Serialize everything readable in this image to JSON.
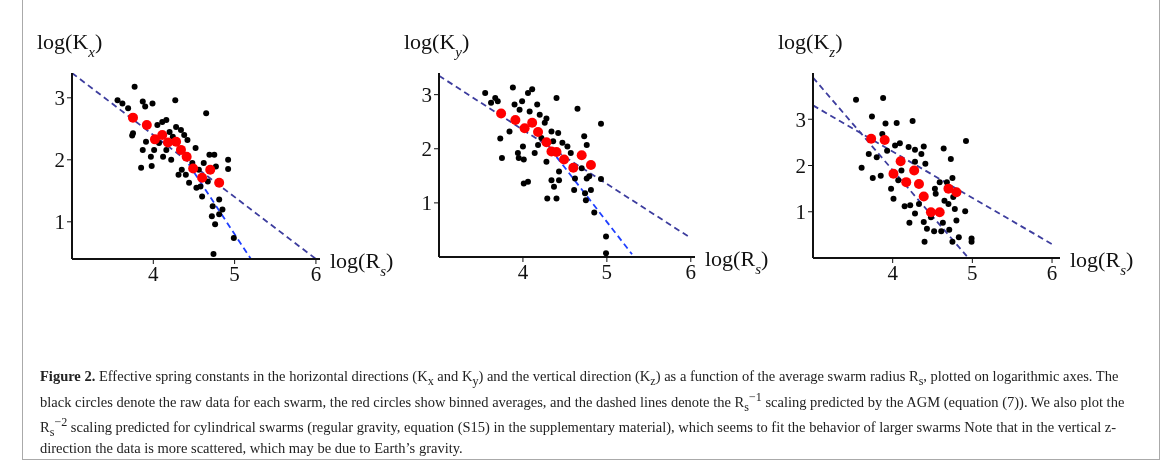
{
  "chart_data": [
    {
      "type": "scatter",
      "ylabel": "log(K$_{x}$)",
      "xlabel": "log(R$_{s}$)",
      "xlim": [
        3,
        6.05
      ],
      "ylim": [
        0.4,
        3.4
      ],
      "xticks": [
        4,
        5,
        6
      ],
      "yticks": [
        1,
        2,
        3
      ],
      "marker": "circle",
      "annotations": [
        "Figure 2.",
        "Effective spring constants in the horizontal directions (K$_{x}$ and K$_{y}$) and the vertical direction (K$_{z}$) as a function of the average swarm radius R$_{s}$, plotted on logarithmic axes. The black circles denote the raw data for each swarm, the red circles show binned averages, and the dashed lines denote the R$_{s}$$^{−1}$ scaling predicted by the AGM (equation (7)). We also plot the R$_{s}$$^{−2}$ scaling predicted for cylindrical swarms (regular gravity, equation (S15) in the supplementary material), which seems to fit the behavior of larger swarms Note that in the vertical z-direction the data is more scattered, which may be due to Earth’s gravity."
      ],
      "series": [
        {
          "type": "line",
          "color": "#3d3d9e",
          "line_style": "dashed",
          "marker": "none",
          "x": [
            3,
            6
          ],
          "values": [
            3.4,
            0.4
          ]
        },
        {
          "type": "line",
          "color": "#1f3fff",
          "line_style": "dashed",
          "marker": "none",
          "x": [
            4.3,
            5.2
          ],
          "values": [
            2.2,
            0.4
          ]
        },
        {
          "color": "#000000",
          "x": [
            3.56,
            3.62,
            3.69,
            3.77,
            3.75,
            3.74,
            3.87,
            3.9,
            3.99,
            3.85,
            3.87,
            3.91,
            3.97,
            3.98,
            4.01,
            4.05,
            4.11,
            4.16,
            4.12,
            4.16,
            4.27,
            4.22,
            4.28,
            4.34,
            4.38,
            4.42,
            4.35,
            4.4,
            4.44,
            4.52,
            4.53,
            4.6,
            4.58,
            4.65,
            4.67,
            4.69,
            4.75,
            4.77,
            4.73,
            4.72,
            4.76,
            4.81,
            4.85,
            4.81,
            4.92,
            4.92,
            4.99,
            4.74,
            4.24,
            4.48,
            4.56,
            4.31,
            4.2,
            4.07,
            4.62
          ],
          "values": [
            2.96,
            2.91,
            2.83,
            3.18,
            2.43,
            2.39,
            2.94,
            2.86,
            2.91,
            1.87,
            2.16,
            2.29,
            2.05,
            1.9,
            2.16,
            2.56,
            2.61,
            2.64,
            2.05,
            2.16,
            2.96,
            2.0,
            2.53,
            2.48,
            2.4,
            2.32,
            1.84,
            1.76,
            1.63,
            2.19,
            1.55,
            1.41,
            1.57,
            2.75,
            1.65,
            2.08,
            2.08,
            1.89,
            1.25,
            1.09,
            0.96,
            1.36,
            1.2,
            1.12,
            2.0,
            1.85,
            0.74,
            0.48,
            2.37,
            1.95,
            1.84,
            1.76,
            2.45,
            2.27,
            1.95
          ]
        },
        {
          "color": "#ff0000",
          "x": [
            3.75,
            3.92,
            4.02,
            4.11,
            4.18,
            4.28,
            4.34,
            4.41,
            4.49,
            4.6,
            4.7,
            4.81
          ],
          "values": [
            2.68,
            2.56,
            2.33,
            2.4,
            2.28,
            2.29,
            2.16,
            2.05,
            1.86,
            1.71,
            1.84,
            1.63
          ]
        }
      ]
    },
    {
      "type": "scatter",
      "ylabel": "log(K$_{y}$)",
      "xlabel": "log(R$_{s}$)",
      "xlim": [
        3,
        6.05
      ],
      "ylim": [
        0,
        3.4
      ],
      "xticks": [
        4,
        5,
        6
      ],
      "yticks": [
        1,
        2,
        3
      ],
      "marker": "circle",
      "series": [
        {
          "type": "line",
          "color": "#3d3d9e",
          "line_style": "dashed",
          "marker": "none",
          "x": [
            3,
            6
          ],
          "values": [
            3.35,
            0.35
          ]
        },
        {
          "type": "line",
          "color": "#1f3fff",
          "line_style": "dashed",
          "marker": "none",
          "x": [
            4.4,
            5.3
          ],
          "values": [
            1.85,
            0.05
          ]
        },
        {
          "color": "#000000",
          "x": [
            3.55,
            3.62,
            3.67,
            3.7,
            3.73,
            3.75,
            3.84,
            3.88,
            3.9,
            3.96,
            3.99,
            3.94,
            3.95,
            4.01,
            4.01,
            4.06,
            4.0,
            4.06,
            4.11,
            4.08,
            4.17,
            4.14,
            4.2,
            4.26,
            4.28,
            4.28,
            4.29,
            4.34,
            4.37,
            4.4,
            4.4,
            4.42,
            4.43,
            4.43,
            4.47,
            4.53,
            4.57,
            4.61,
            4.62,
            4.65,
            4.7,
            4.73,
            4.74,
            4.75,
            4.76,
            4.76,
            4.79,
            4.81,
            4.85,
            4.93,
            4.93,
            4.99,
            4.99,
            4.22,
            4.34,
            4.18,
            4.36
          ],
          "values": [
            3.03,
            2.85,
            2.94,
            2.88,
            2.19,
            1.83,
            2.32,
            3.13,
            2.82,
            2.72,
            2.88,
            1.92,
            1.83,
            1.8,
            1.36,
            1.39,
            2.04,
            3.03,
            3.1,
            2.69,
            2.82,
            1.92,
            2.63,
            2.48,
            2.56,
            1.76,
            1.08,
            1.42,
            1.3,
            2.94,
            1.08,
            2.29,
            1.58,
            1.42,
            2.11,
            2.04,
            1.92,
            1.24,
            1.45,
            2.74,
            1.64,
            2.23,
            1.18,
            1.05,
            2.07,
            1.45,
            1.49,
            1.24,
            0.82,
            2.46,
            1.44,
            0.38,
            0.07,
            2.2,
            2.32,
            2.07,
            2.14
          ]
        },
        {
          "color": "#ff0000",
          "x": [
            3.74,
            3.91,
            4.02,
            4.11,
            4.18,
            4.28,
            4.34,
            4.4,
            4.49,
            4.6,
            4.7,
            4.81
          ],
          "values": [
            2.65,
            2.53,
            2.38,
            2.48,
            2.31,
            2.12,
            1.95,
            1.94,
            1.8,
            1.65,
            1.88,
            1.7
          ]
        }
      ]
    },
    {
      "type": "scatter",
      "ylabel": "log(K$_{z}$)",
      "xlabel": "log(R$_{s}$)",
      "xlim": [
        3,
        6.1
      ],
      "ylim": [
        0,
        4
      ],
      "xticks": [
        4,
        5,
        6
      ],
      "yticks": [
        1,
        2,
        3
      ],
      "marker": "circle",
      "series": [
        {
          "type": "line",
          "color": "#3d3d9e",
          "line_style": "dashed",
          "marker": "none",
          "x": [
            3,
            6
          ],
          "values": [
            3.3,
            0.3
          ]
        },
        {
          "type": "line",
          "color": "#3d3d9e",
          "line_style": "dashed",
          "marker": "none",
          "x": [
            3,
            4.93
          ],
          "values": [
            3.9,
            0.04
          ]
        },
        {
          "color": "#000000",
          "x": [
            3.54,
            3.88,
            3.74,
            3.91,
            4.05,
            4.25,
            3.7,
            3.61,
            3.75,
            3.85,
            3.8,
            3.87,
            3.93,
            3.98,
            4.01,
            4.03,
            4.09,
            4.11,
            4.15,
            4.2,
            4.21,
            4.22,
            4.28,
            4.28,
            4.28,
            4.36,
            4.39,
            4.39,
            4.41,
            4.4,
            4.43,
            4.48,
            4.53,
            4.52,
            4.54,
            4.59,
            4.61,
            4.63,
            4.64,
            4.65,
            4.68,
            4.7,
            4.71,
            4.73,
            4.75,
            4.75,
            4.76,
            4.78,
            4.8,
            4.83,
            4.91,
            4.92,
            4.99,
            4.99,
            4.07,
            4.33
          ],
          "values": [
            3.42,
            3.46,
            3.06,
            2.91,
            2.92,
            2.96,
            2.25,
            1.95,
            1.73,
            1.78,
            2.18,
            2.68,
            2.32,
            1.5,
            1.28,
            2.43,
            2.48,
            1.89,
            1.12,
            2.4,
            0.76,
            1.14,
            2.34,
            2.08,
            0.96,
            2.25,
            2.41,
            0.78,
            2.04,
            0.35,
            0.63,
            0.88,
            1.5,
            0.58,
            1.39,
            1.64,
            0.58,
            0.76,
            2.37,
            1.24,
            1.64,
            1.17,
            0.61,
            2.14,
            0.35,
            1.73,
            1.32,
            1.06,
            0.81,
            0.45,
            1.01,
            2.53,
            0.42,
            0.35,
            1.68,
            1.17
          ]
        },
        {
          "color": "#ff0000",
          "x": [
            3.73,
            3.9,
            4.1,
            4.01,
            4.17,
            4.27,
            4.33,
            4.39,
            4.48,
            4.59,
            4.7,
            4.8
          ],
          "values": [
            2.58,
            2.55,
            2.09,
            1.82,
            1.64,
            1.89,
            1.6,
            1.33,
            0.99,
            0.99,
            1.5,
            1.42
          ]
        }
      ]
    }
  ]
}
